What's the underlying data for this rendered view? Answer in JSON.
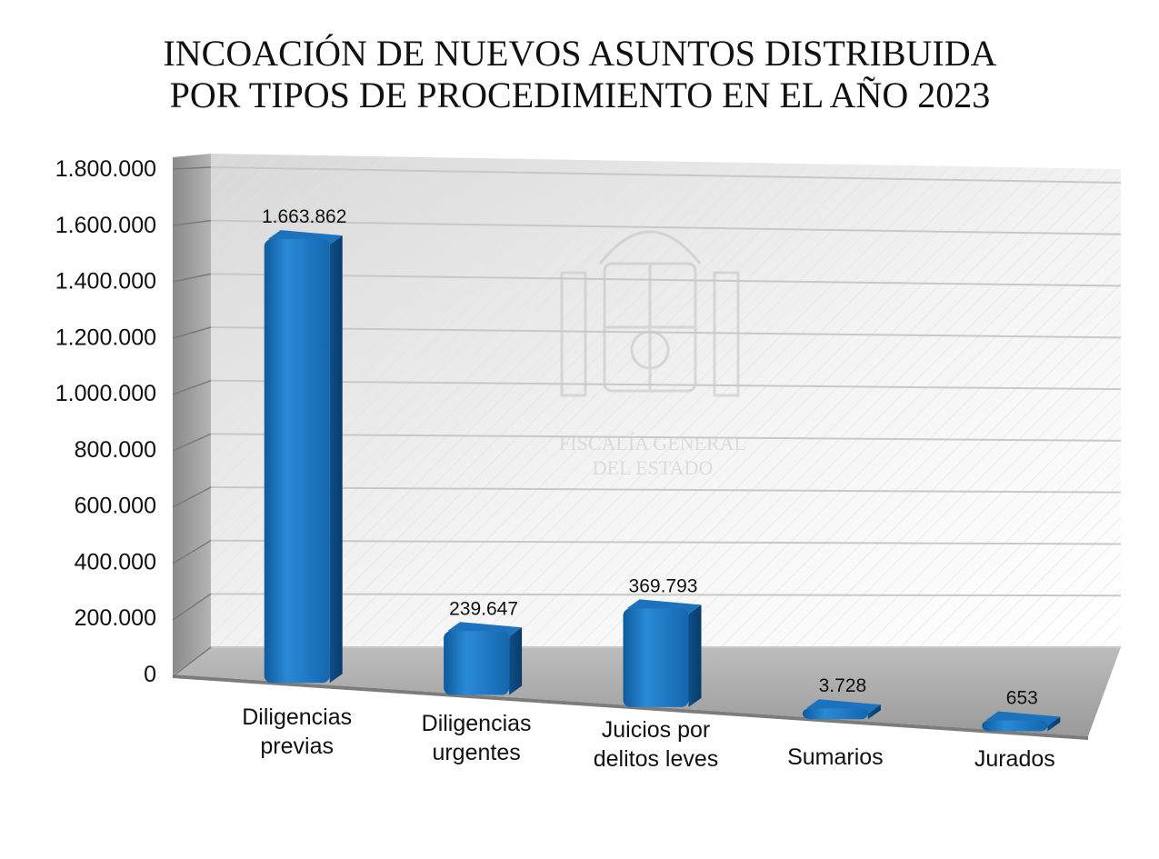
{
  "chart_data": {
    "type": "bar",
    "title": "INCOACIÓN DE NUEVOS ASUNTOS DISTRIBUIDA POR TIPOS DE PROCEDIMIENTO EN EL AÑO 2023",
    "title_lines": [
      "INCOACIÓN DE NUEVOS ASUNTOS DISTRIBUIDA",
      "POR TIPOS DE PROCEDIMIENTO EN EL AÑO 2023"
    ],
    "categories": [
      [
        "Diligencias",
        "previas"
      ],
      [
        "Diligencias",
        "urgentes"
      ],
      [
        "Juicios por",
        "delitos leves"
      ],
      [
        "Sumarios"
      ],
      [
        "Jurados"
      ]
    ],
    "values": [
      1663862,
      239647,
      369793,
      3728,
      653
    ],
    "value_labels": [
      "1.663.862",
      "239.647",
      "369.793",
      "3.728",
      "653"
    ],
    "yticks": [
      0,
      200000,
      400000,
      600000,
      800000,
      1000000,
      1200000,
      1400000,
      1600000,
      1800000
    ],
    "ytick_labels": [
      "0",
      "200.000",
      "400.000",
      "600.000",
      "800.000",
      "1.000.000",
      "1.200.000",
      "1.400.000",
      "1.600.000",
      "1.800.000"
    ],
    "ylim": [
      0,
      1800000
    ],
    "xlabel": "",
    "ylabel": "",
    "grid": true,
    "bar_color": "#1f77c4",
    "bar_dark_color": "#0d4f88",
    "watermark": [
      "FISCALÍA GENERAL",
      "DEL ESTADO"
    ]
  }
}
